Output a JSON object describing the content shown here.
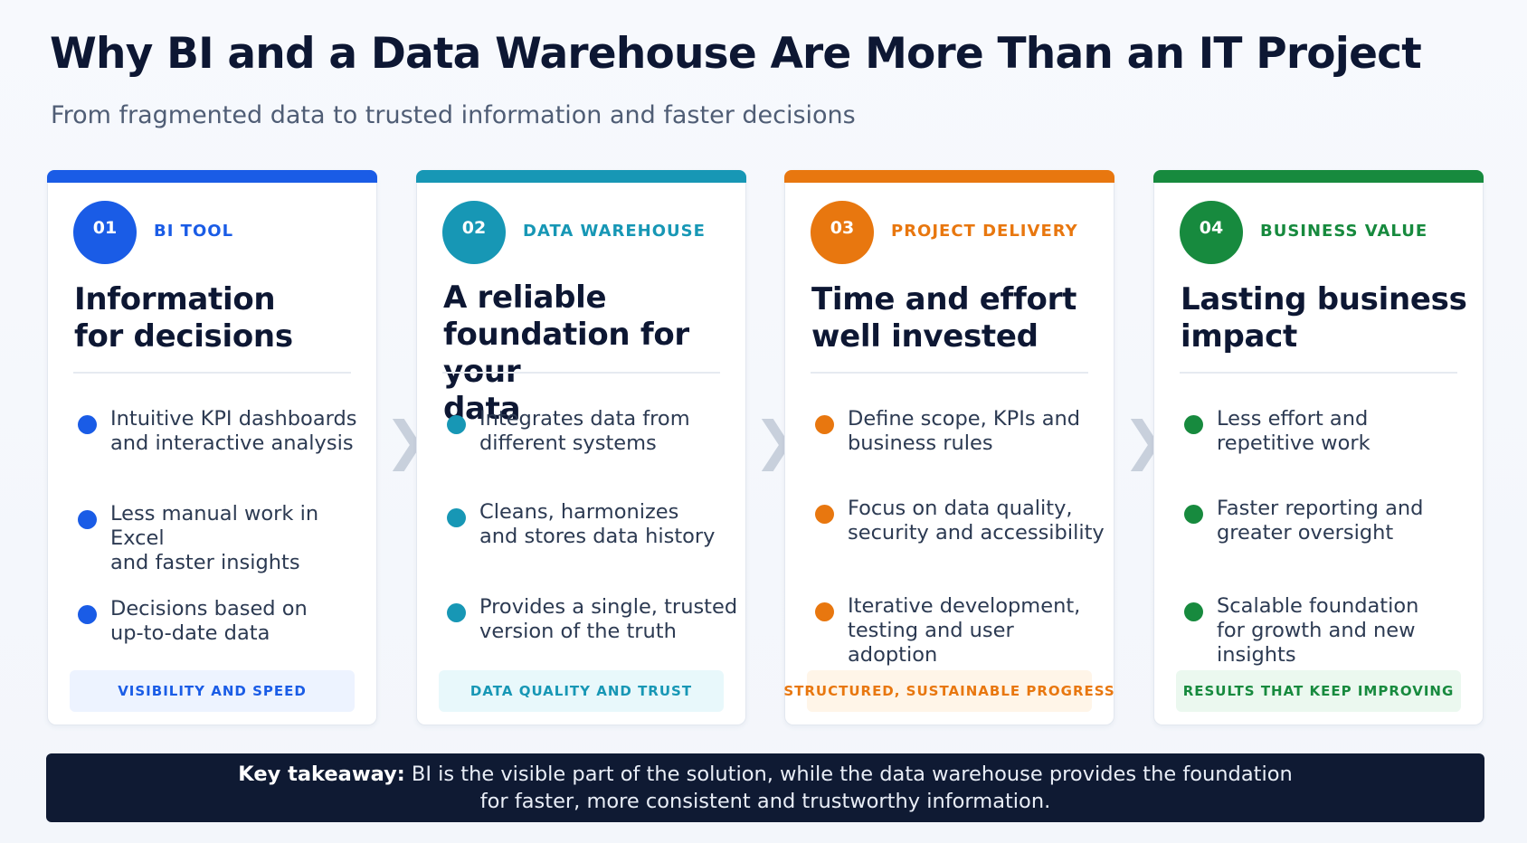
{
  "title": "Why BI and a Data Warehouse Are More Than an IT Project",
  "subtitle": "From fragmented data to trusted information and faster decisions",
  "cards": [
    {
      "number": "01",
      "tag": "BI TOOL",
      "heading_line1": "Information",
      "heading_line2": "for decisions",
      "heading_line3": "",
      "accent": "#1a5ce6",
      "footer_bg": "#edf3ff",
      "bullets": [
        {
          "line1": "Intuitive KPI dashboards",
          "line2": "and interactive analysis"
        },
        {
          "line1": "Less manual work in Excel",
          "line2": "and faster insights"
        },
        {
          "line1": "Decisions based on",
          "line2": "up-to-date data"
        }
      ],
      "footer": "VISIBILITY AND SPEED"
    },
    {
      "number": "02",
      "tag": "DATA WAREHOUSE",
      "heading_line1": "A reliable",
      "heading_line2": "foundation for your",
      "heading_line3": "data",
      "accent": "#1797b5",
      "footer_bg": "#e8f8fb",
      "bullets": [
        {
          "line1": "Integrates data from",
          "line2": "different systems"
        },
        {
          "line1": "Cleans, harmonizes",
          "line2": "and stores data history"
        },
        {
          "line1": "Provides a single, trusted",
          "line2": "version of the truth"
        }
      ],
      "footer": "DATA QUALITY AND TRUST"
    },
    {
      "number": "03",
      "tag": "PROJECT DELIVERY",
      "heading_line1": "Time and effort",
      "heading_line2": "well invested",
      "heading_line3": "",
      "accent": "#e8770f",
      "footer_bg": "#fff5e8",
      "bullets": [
        {
          "line1": "Define scope, KPIs and",
          "line2": "business rules"
        },
        {
          "line1": "Focus on data quality,",
          "line2": "security and accessibility"
        },
        {
          "line1": "Iterative development,",
          "line2": "testing and user adoption"
        }
      ],
      "footer": "STRUCTURED, SUSTAINABLE PROGRESS"
    },
    {
      "number": "04",
      "tag": "BUSINESS VALUE",
      "heading_line1": "Lasting business",
      "heading_line2": "impact",
      "heading_line3": "",
      "accent": "#178a3e",
      "footer_bg": "#ebf8ef",
      "bullets": [
        {
          "line1": "Less effort and",
          "line2": "repetitive work"
        },
        {
          "line1": "Faster reporting and",
          "line2": "greater oversight"
        },
        {
          "line1": "Scalable foundation",
          "line2": "for growth and new insights"
        }
      ],
      "footer": "RESULTS THAT KEEP IMPROVING"
    }
  ],
  "arrow_glyph": "❯",
  "takeaway": {
    "label": "Key takeaway:",
    "line1": "BI is the visible part of the solution, while the data warehouse provides the foundation",
    "line2": "for faster, more consistent and trustworthy information."
  }
}
